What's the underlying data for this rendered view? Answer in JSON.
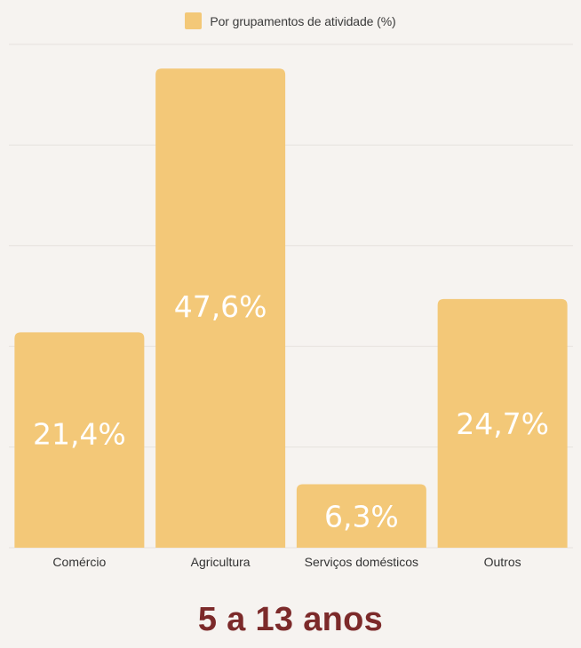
{
  "legend": {
    "label": "Por grupamentos de atividade (%)"
  },
  "title": "5 a 13 anos",
  "colors": {
    "bar": "#f3c878",
    "grid": "#e5e2de",
    "background": "#f6f3f0",
    "title": "#7c2a2a",
    "value_label": "#ffffff"
  },
  "chart_data": {
    "type": "bar",
    "title": "5 a 13 anos",
    "categories": [
      "Comércio",
      "Agricultura",
      "Serviços domésticos",
      "Outros"
    ],
    "series": [
      {
        "name": "Por grupamentos de atividade (%)",
        "values": [
          21.4,
          47.6,
          6.3,
          24.7
        ]
      }
    ],
    "value_labels": [
      "21,4%",
      "47,6%",
      "6,3%",
      "24,7%"
    ],
    "xlabel": "",
    "ylabel": "",
    "ylim": [
      0,
      50
    ],
    "grid": true,
    "legend_position": "top-center",
    "y_tick_labels_shown": false
  }
}
